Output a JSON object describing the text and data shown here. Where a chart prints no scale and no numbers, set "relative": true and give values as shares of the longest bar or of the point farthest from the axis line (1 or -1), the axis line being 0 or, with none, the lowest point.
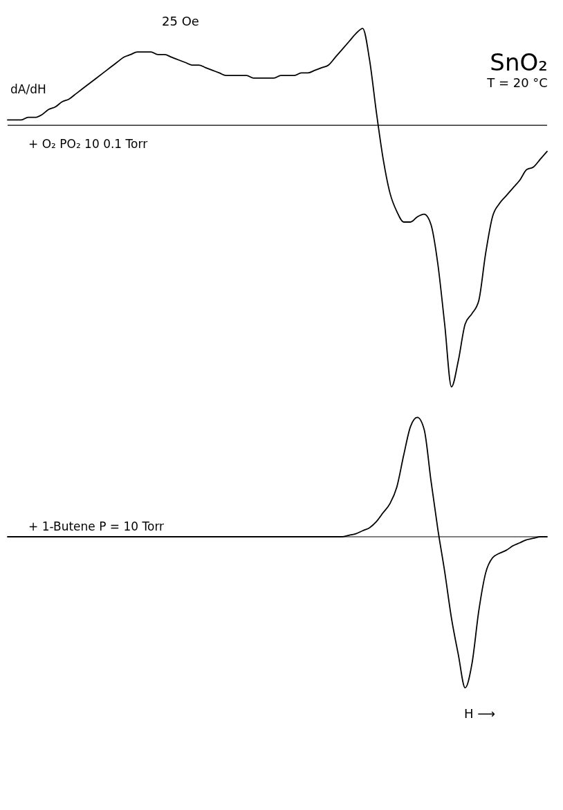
{
  "chart_data": [
    {
      "type": "line",
      "title": "SnO₂",
      "subtitle": "T = 20 °C",
      "ylabel": "dA/dH",
      "relative": true,
      "marker": "none",
      "line_style": "solid",
      "annotations": [
        "25 Oe",
        "+ O₂   PO₂  10    0.1 Torr"
      ],
      "categories": [
        null,
        null,
        null,
        null,
        null,
        null,
        null,
        null,
        null,
        null,
        null,
        null,
        null,
        null,
        null,
        null,
        null,
        null,
        null,
        null,
        null,
        null,
        null,
        null,
        null,
        null,
        null,
        null,
        null,
        null,
        null,
        null,
        null,
        null,
        null,
        null,
        null,
        null,
        null,
        null,
        null,
        null,
        null,
        null,
        null,
        null,
        null,
        null,
        null,
        null,
        null,
        null,
        null,
        null,
        null,
        null,
        null,
        null,
        null,
        null,
        null,
        null,
        null,
        null,
        null,
        null,
        null,
        null,
        null,
        null,
        null,
        null,
        null,
        null,
        null,
        null,
        null,
        null,
        null,
        null
      ],
      "series": [
        {
          "color": "#000000",
          "values": [
            0.02,
            0.02,
            0.02,
            0.03,
            0.03,
            0.04,
            0.06,
            0.07,
            0.09,
            0.1,
            0.12,
            0.14,
            0.16,
            0.18,
            0.2,
            0.22,
            0.24,
            0.26,
            0.27,
            0.28,
            0.28,
            0.28,
            0.27,
            0.27,
            0.26,
            0.25,
            0.24,
            0.23,
            0.23,
            0.22,
            0.21,
            0.2,
            0.19,
            0.19,
            0.19,
            0.19,
            0.18,
            0.18,
            0.18,
            0.18,
            0.19,
            0.19,
            0.19,
            0.2,
            0.2,
            0.21,
            0.22,
            0.23,
            0.26,
            0.29,
            0.32,
            0.35,
            0.37,
            0.25,
            0.05,
            -0.13,
            -0.26,
            -0.33,
            -0.37,
            -0.37,
            -0.35,
            -0.34,
            -0.38,
            -0.53,
            -0.76,
            -1.0,
            -0.9,
            -0.76,
            -0.72,
            -0.67,
            -0.49,
            -0.35,
            -0.3,
            -0.27,
            -0.24,
            -0.21,
            -0.17,
            -0.16,
            -0.13,
            -0.1
          ]
        }
      ]
    },
    {
      "type": "line",
      "xlabel": "H ⟶",
      "relative": true,
      "marker": "none",
      "line_style": "solid",
      "annotations": [
        "+ 1-Butene  P = 10 Torr"
      ],
      "categories": [
        null,
        null,
        null,
        null,
        null,
        null,
        null,
        null,
        null,
        null,
        null,
        null,
        null,
        null,
        null,
        null,
        null,
        null,
        null,
        null,
        null,
        null,
        null,
        null,
        null,
        null,
        null,
        null,
        null,
        null,
        null,
        null,
        null,
        null,
        null,
        null,
        null,
        null,
        null,
        null,
        null,
        null,
        null,
        null,
        null,
        null,
        null,
        null,
        null,
        null,
        null,
        null,
        null,
        null,
        null,
        null,
        null,
        null,
        null,
        null,
        null,
        null,
        null,
        null,
        null,
        null,
        null,
        null,
        null,
        null,
        null,
        null,
        null,
        null,
        null,
        null,
        null,
        null,
        null,
        null
      ],
      "series": [
        {
          "color": "#000000",
          "values": [
            0,
            0,
            0,
            0,
            0,
            0,
            0,
            0,
            0,
            0,
            0,
            0,
            0,
            0,
            0,
            0,
            0,
            0,
            0,
            0,
            0,
            0,
            0,
            0,
            0,
            0,
            0,
            0,
            0,
            0,
            0,
            0,
            0,
            0,
            0,
            0,
            0,
            0,
            0,
            0,
            0,
            0,
            0,
            0,
            0,
            0,
            0,
            0,
            0,
            0.0,
            0.01,
            0.02,
            0.04,
            0.06,
            0.1,
            0.16,
            0.22,
            0.33,
            0.54,
            0.73,
            0.79,
            0.71,
            0.37,
            0.05,
            -0.23,
            -0.54,
            -0.78,
            -1.0,
            -0.84,
            -0.49,
            -0.24,
            -0.14,
            -0.11,
            -0.09,
            -0.06,
            -0.04,
            -0.02,
            -0.01,
            0,
            0
          ]
        }
      ]
    }
  ]
}
